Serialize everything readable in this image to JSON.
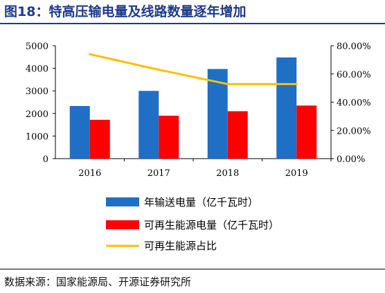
{
  "header": {
    "title": "图18：特高压输电量及线路数量逐年增加"
  },
  "footer": {
    "source": "数据来源：国家能源局、开源证券研究所"
  },
  "colors": {
    "annual": "#1f6fc5",
    "renewable": "#ff0000",
    "share": "#ffc000",
    "title": "#1f3a8a"
  },
  "chart_data": {
    "type": "bar",
    "categories": [
      "2016",
      "2017",
      "2018",
      "2019"
    ],
    "series": [
      {
        "name": "年输送电量（亿千瓦时）",
        "kind": "bar",
        "axis": "left",
        "values": [
          2330,
          3000,
          3970,
          4480
        ]
      },
      {
        "name": "可再生能源电量（亿千瓦时）",
        "kind": "bar",
        "axis": "left",
        "values": [
          1720,
          1900,
          2100,
          2350
        ]
      },
      {
        "name": "可再生能源占比",
        "kind": "line",
        "axis": "right",
        "values": [
          74.0,
          63.0,
          52.8,
          52.8
        ]
      }
    ],
    "y_left": {
      "ylim": [
        0,
        5000
      ],
      "ticks": [
        "0",
        "1000",
        "2000",
        "3000",
        "4000",
        "5000"
      ]
    },
    "y_right": {
      "ylim": [
        0,
        80
      ],
      "ticks": [
        "0.00%",
        "20.00%",
        "40.00%",
        "60.00%",
        "80.00%"
      ]
    },
    "legend": "bottom",
    "grid": false
  }
}
